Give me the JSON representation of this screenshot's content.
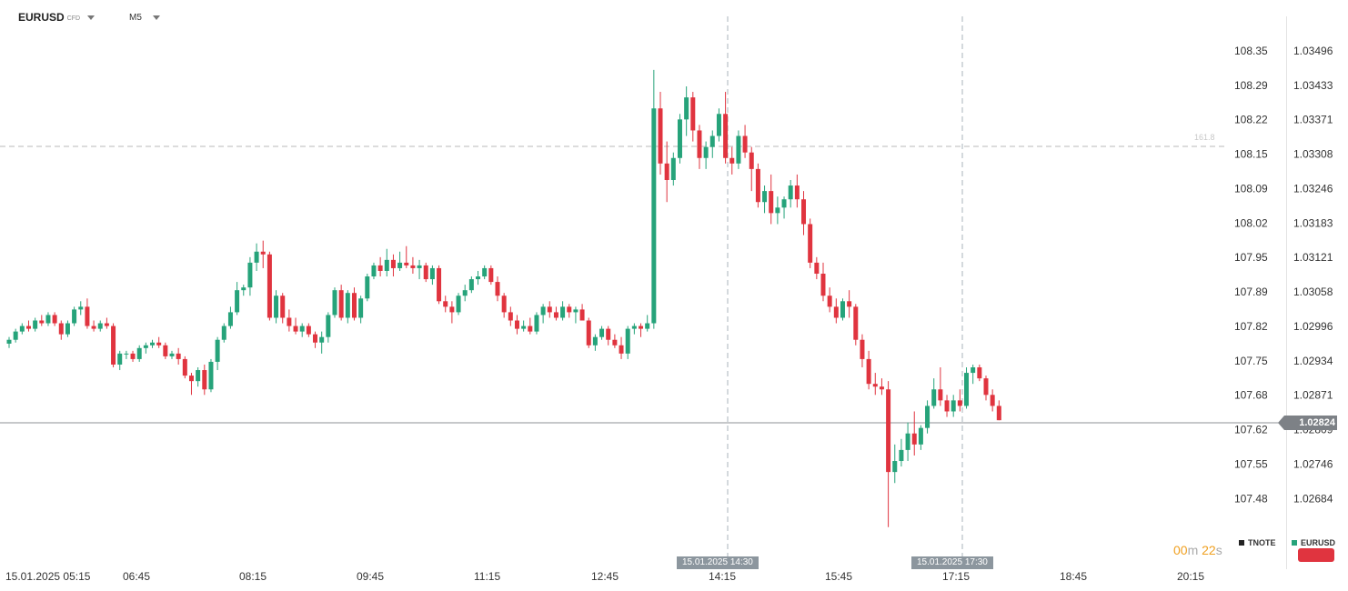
{
  "header": {
    "symbol": "EURUSD",
    "symbol_type": "CFD",
    "timeframe": "M5"
  },
  "left_axis_labels": [
    "108.35",
    "108.29",
    "108.22",
    "108.15",
    "108.09",
    "108.02",
    "107.95",
    "107.89",
    "107.82",
    "107.75",
    "107.68",
    "107.62",
    "107.55",
    "107.48"
  ],
  "right_axis_labels": [
    "1.03496",
    "1.03433",
    "1.03371",
    "1.03308",
    "1.03246",
    "1.03183",
    "1.03121",
    "1.03058",
    "1.02996",
    "1.02934",
    "1.02871",
    "1.02809",
    "1.02746",
    "1.02684"
  ],
  "time_labels": [
    "15.01.2025  05:15",
    "06:45",
    "08:15",
    "09:45",
    "11:15",
    "12:45",
    "14:15",
    "15:45",
    "17:15",
    "18:45",
    "20:15"
  ],
  "current_price": "1.02824",
  "fib_level": "161.8",
  "time_markers": [
    "15.01.2025 14:30",
    "15.01.2025 17:30"
  ],
  "countdown": {
    "min": "00",
    "min_unit": "m",
    "sec": "22",
    "sec_unit": "s"
  },
  "legend": [
    {
      "label": "TNOTE",
      "color": "#222222"
    },
    {
      "label": "EURUSD",
      "color": "#26a37a"
    }
  ],
  "colors": {
    "up": "#26a37a",
    "down": "#e0343f",
    "grid": "#e3e3e3"
  },
  "chart_data": {
    "type": "candlestick",
    "title": "EURUSD",
    "timeframe": "M5",
    "date": "15.01.2025",
    "y_range": [
      1.0262,
      1.0355
    ],
    "current_price": 1.02824,
    "fib_level": {
      "label": "161.8",
      "price": 1.03308
    },
    "markers": [
      "14:30",
      "17:30"
    ],
    "candles": [
      [
        1.02963,
        1.02975,
        1.02955,
        1.0297
      ],
      [
        1.0297,
        1.0299,
        1.02965,
        1.02985
      ],
      [
        1.02985,
        1.03,
        1.0298,
        1.02995
      ],
      [
        1.02995,
        1.03005,
        1.02985,
        1.0299
      ],
      [
        1.0299,
        1.0301,
        1.02985,
        1.03005
      ],
      [
        1.03005,
        1.03015,
        1.02995,
        1.03
      ],
      [
        1.03,
        1.0302,
        1.02995,
        1.03015
      ],
      [
        1.03015,
        1.0302,
        1.02995,
        1.03
      ],
      [
        1.03,
        1.03005,
        1.0297,
        1.0298
      ],
      [
        1.0298,
        1.03005,
        1.02975,
        1.03
      ],
      [
        1.03,
        1.0303,
        1.02995,
        1.03025
      ],
      [
        1.03025,
        1.0304,
        1.03015,
        1.0303
      ],
      [
        1.0303,
        1.03045,
        1.0299,
        1.02995
      ],
      [
        1.02995,
        1.03005,
        1.02985,
        1.0299
      ],
      [
        1.0299,
        1.03005,
        1.02985,
        1.03
      ],
      [
        1.03,
        1.0301,
        1.0299,
        1.02995
      ],
      [
        1.02995,
        1.03,
        1.0292,
        1.02925
      ],
      [
        1.02925,
        1.0295,
        1.02915,
        1.02945
      ],
      [
        1.02945,
        1.0295,
        1.02935,
        1.02945
      ],
      [
        1.02945,
        1.0295,
        1.0293,
        1.02935
      ],
      [
        1.02935,
        1.0296,
        1.0293,
        1.02955
      ],
      [
        1.02955,
        1.02965,
        1.02945,
        1.0296
      ],
      [
        1.0296,
        1.0297,
        1.02955,
        1.02965
      ],
      [
        1.02965,
        1.02975,
        1.02955,
        1.0296
      ],
      [
        1.0296,
        1.02965,
        1.02935,
        1.0294
      ],
      [
        1.0294,
        1.0295,
        1.02935,
        1.02945
      ],
      [
        1.02945,
        1.02955,
        1.02925,
        1.02935
      ],
      [
        1.02935,
        1.0294,
        1.029,
        1.02905
      ],
      [
        1.02905,
        1.0291,
        1.0287,
        1.02895
      ],
      [
        1.02895,
        1.0292,
        1.02885,
        1.02915
      ],
      [
        1.02915,
        1.02925,
        1.0287,
        1.0288
      ],
      [
        1.0288,
        1.02935,
        1.02875,
        1.0293
      ],
      [
        1.0293,
        1.02975,
        1.02915,
        1.0297
      ],
      [
        1.0297,
        1.03,
        1.02965,
        1.02995
      ],
      [
        1.02995,
        1.0303,
        1.0299,
        1.0302
      ],
      [
        1.0302,
        1.03075,
        1.03015,
        1.0306
      ],
      [
        1.0306,
        1.0307,
        1.0305,
        1.03065
      ],
      [
        1.03065,
        1.0312,
        1.0305,
        1.0311
      ],
      [
        1.0311,
        1.03145,
        1.03095,
        1.0313
      ],
      [
        1.0313,
        1.0315,
        1.031,
        1.03125
      ],
      [
        1.03125,
        1.0313,
        1.03005,
        1.0301
      ],
      [
        1.0301,
        1.0306,
        1.03,
        1.0305
      ],
      [
        1.0305,
        1.03055,
        1.03,
        1.0301
      ],
      [
        1.0301,
        1.03025,
        1.02985,
        1.02995
      ],
      [
        1.02995,
        1.0301,
        1.0298,
        1.02985
      ],
      [
        1.02985,
        1.03,
        1.02975,
        1.02995
      ],
      [
        1.02995,
        1.03,
        1.02975,
        1.0298
      ],
      [
        1.0298,
        1.02985,
        1.02955,
        1.02965
      ],
      [
        1.02965,
        1.02985,
        1.02945,
        1.02975
      ],
      [
        1.02975,
        1.0302,
        1.02965,
        1.03015
      ],
      [
        1.03015,
        1.03065,
        1.0301,
        1.0306
      ],
      [
        1.0306,
        1.0307,
        1.03005,
        1.0301
      ],
      [
        1.0301,
        1.0306,
        1.03,
        1.03055
      ],
      [
        1.03055,
        1.03065,
        1.03005,
        1.0301
      ],
      [
        1.0301,
        1.0305,
        1.03,
        1.03045
      ],
      [
        1.03045,
        1.0309,
        1.0304,
        1.03085
      ],
      [
        1.03085,
        1.0311,
        1.0308,
        1.03105
      ],
      [
        1.03105,
        1.0312,
        1.03085,
        1.03095
      ],
      [
        1.03095,
        1.03135,
        1.03085,
        1.03115
      ],
      [
        1.03115,
        1.03125,
        1.03085,
        1.031
      ],
      [
        1.031,
        1.0313,
        1.03095,
        1.0311
      ],
      [
        1.0311,
        1.0314,
        1.031,
        1.03105
      ],
      [
        1.03105,
        1.0312,
        1.0309,
        1.031
      ],
      [
        1.031,
        1.03115,
        1.0308,
        1.03105
      ],
      [
        1.03105,
        1.0311,
        1.03075,
        1.0308
      ],
      [
        1.0308,
        1.03105,
        1.0307,
        1.031
      ],
      [
        1.031,
        1.03105,
        1.03035,
        1.0304
      ],
      [
        1.0304,
        1.0305,
        1.0302,
        1.0303
      ],
      [
        1.0303,
        1.0304,
        1.03,
        1.0302
      ],
      [
        1.0302,
        1.03055,
        1.03015,
        1.0305
      ],
      [
        1.0305,
        1.0307,
        1.0304,
        1.0306
      ],
      [
        1.0306,
        1.03085,
        1.03055,
        1.0308
      ],
      [
        1.0308,
        1.03095,
        1.0307,
        1.03085
      ],
      [
        1.03085,
        1.03105,
        1.0308,
        1.031
      ],
      [
        1.031,
        1.03105,
        1.0307,
        1.03075
      ],
      [
        1.03075,
        1.03085,
        1.0304,
        1.0305
      ],
      [
        1.0305,
        1.03055,
        1.0301,
        1.0302
      ],
      [
        1.0302,
        1.0303,
        1.02995,
        1.03005
      ],
      [
        1.03005,
        1.03015,
        1.0298,
        1.0299
      ],
      [
        1.0299,
        1.03005,
        1.02985,
        1.02995
      ],
      [
        1.02995,
        1.0301,
        1.0298,
        1.02985
      ],
      [
        1.02985,
        1.0302,
        1.0298,
        1.03015
      ],
      [
        1.03015,
        1.03035,
        1.03,
        1.0303
      ],
      [
        1.0303,
        1.0304,
        1.0301,
        1.0302
      ],
      [
        1.0302,
        1.0303,
        1.03005,
        1.0301
      ],
      [
        1.0301,
        1.0304,
        1.03005,
        1.0303
      ],
      [
        1.0303,
        1.03035,
        1.0301,
        1.0302
      ],
      [
        1.0302,
        1.0303,
        1.03,
        1.03025
      ],
      [
        1.03025,
        1.03035,
        1.03005,
        1.03005
      ],
      [
        1.03005,
        1.0301,
        1.02955,
        1.0296
      ],
      [
        1.0296,
        1.0298,
        1.0295,
        1.02975
      ],
      [
        1.02975,
        1.02995,
        1.0297,
        1.0299
      ],
      [
        1.0299,
        1.02995,
        1.0296,
        1.0297
      ],
      [
        1.0297,
        1.0298,
        1.02955,
        1.0296
      ],
      [
        1.0296,
        1.02975,
        1.02935,
        1.02945
      ],
      [
        1.02945,
        1.02995,
        1.02935,
        1.0299
      ],
      [
        1.0299,
        1.03,
        1.0298,
        1.02995
      ],
      [
        1.02995,
        1.03,
        1.02975,
        1.0299
      ],
      [
        1.0299,
        1.03015,
        1.02985,
        1.03
      ],
      [
        1.03,
        1.0346,
        1.0299,
        1.0339
      ],
      [
        1.0339,
        1.0342,
        1.0327,
        1.0329
      ],
      [
        1.0329,
        1.0333,
        1.0322,
        1.0326
      ],
      [
        1.0326,
        1.0331,
        1.0325,
        1.033
      ],
      [
        1.033,
        1.0338,
        1.0329,
        1.0337
      ],
      [
        1.0337,
        1.0343,
        1.0334,
        1.0341
      ],
      [
        1.0341,
        1.0342,
        1.0333,
        1.0335
      ],
      [
        1.0335,
        1.0336,
        1.0328,
        1.033
      ],
      [
        1.033,
        1.0333,
        1.0328,
        1.0332
      ],
      [
        1.0332,
        1.0335,
        1.033,
        1.0334
      ],
      [
        1.0334,
        1.0339,
        1.0333,
        1.0338
      ],
      [
        1.0338,
        1.0342,
        1.0329,
        1.033
      ],
      [
        1.033,
        1.0332,
        1.0327,
        1.0329
      ],
      [
        1.0329,
        1.0335,
        1.0328,
        1.0334
      ],
      [
        1.0334,
        1.0336,
        1.033,
        1.0331
      ],
      [
        1.0331,
        1.0332,
        1.0324,
        1.0328
      ],
      [
        1.0328,
        1.0329,
        1.0321,
        1.0322
      ],
      [
        1.0322,
        1.0325,
        1.032,
        1.0324
      ],
      [
        1.0324,
        1.0327,
        1.0318,
        1.032
      ],
      [
        1.032,
        1.0323,
        1.0318,
        1.0321
      ],
      [
        1.0321,
        1.0323,
        1.0319,
        1.03225
      ],
      [
        1.03225,
        1.0326,
        1.0321,
        1.0325
      ],
      [
        1.0325,
        1.0327,
        1.0321,
        1.03225
      ],
      [
        1.03225,
        1.0324,
        1.0316,
        1.0318
      ],
      [
        1.0318,
        1.0319,
        1.031,
        1.0311
      ],
      [
        1.0311,
        1.0312,
        1.0308,
        1.0309
      ],
      [
        1.0309,
        1.0311,
        1.0304,
        1.0305
      ],
      [
        1.0305,
        1.03065,
        1.0302,
        1.0303
      ],
      [
        1.0303,
        1.03045,
        1.03,
        1.0301
      ],
      [
        1.0301,
        1.03045,
        1.03005,
        1.0304
      ],
      [
        1.0304,
        1.0306,
        1.0301,
        1.0303
      ],
      [
        1.0303,
        1.03035,
        1.0296,
        1.0297
      ],
      [
        1.0297,
        1.0298,
        1.0292,
        1.02935
      ],
      [
        1.02935,
        1.0295,
        1.0288,
        1.0289
      ],
      [
        1.0289,
        1.0291,
        1.0287,
        1.02885
      ],
      [
        1.02885,
        1.029,
        1.0287,
        1.0288
      ],
      [
        1.0288,
        1.02895,
        1.0263,
        1.0273
      ],
      [
        1.0273,
        1.0278,
        1.0271,
        1.0275
      ],
      [
        1.0275,
        1.0279,
        1.0274,
        1.0277
      ],
      [
        1.0277,
        1.0282,
        1.0275,
        1.028
      ],
      [
        1.028,
        1.0284,
        1.0276,
        1.0278
      ],
      [
        1.0278,
        1.02815,
        1.0277,
        1.0281
      ],
      [
        1.0281,
        1.0286,
        1.028,
        1.0285
      ],
      [
        1.0285,
        1.029,
        1.02845,
        1.0288
      ],
      [
        1.0288,
        1.0292,
        1.0285,
        1.0286
      ],
      [
        1.0286,
        1.0287,
        1.0283,
        1.0284
      ],
      [
        1.0284,
        1.0287,
        1.0283,
        1.0286
      ],
      [
        1.0286,
        1.0288,
        1.0284,
        1.0285
      ],
      [
        1.0285,
        1.0292,
        1.02845,
        1.0291
      ],
      [
        1.0291,
        1.02925,
        1.0289,
        1.0292
      ],
      [
        1.0292,
        1.02925,
        1.02895,
        1.029
      ],
      [
        1.029,
        1.02905,
        1.0286,
        1.0287
      ],
      [
        1.0287,
        1.0288,
        1.0284,
        1.0285
      ],
      [
        1.0285,
        1.0286,
        1.02824,
        1.02824
      ]
    ]
  }
}
